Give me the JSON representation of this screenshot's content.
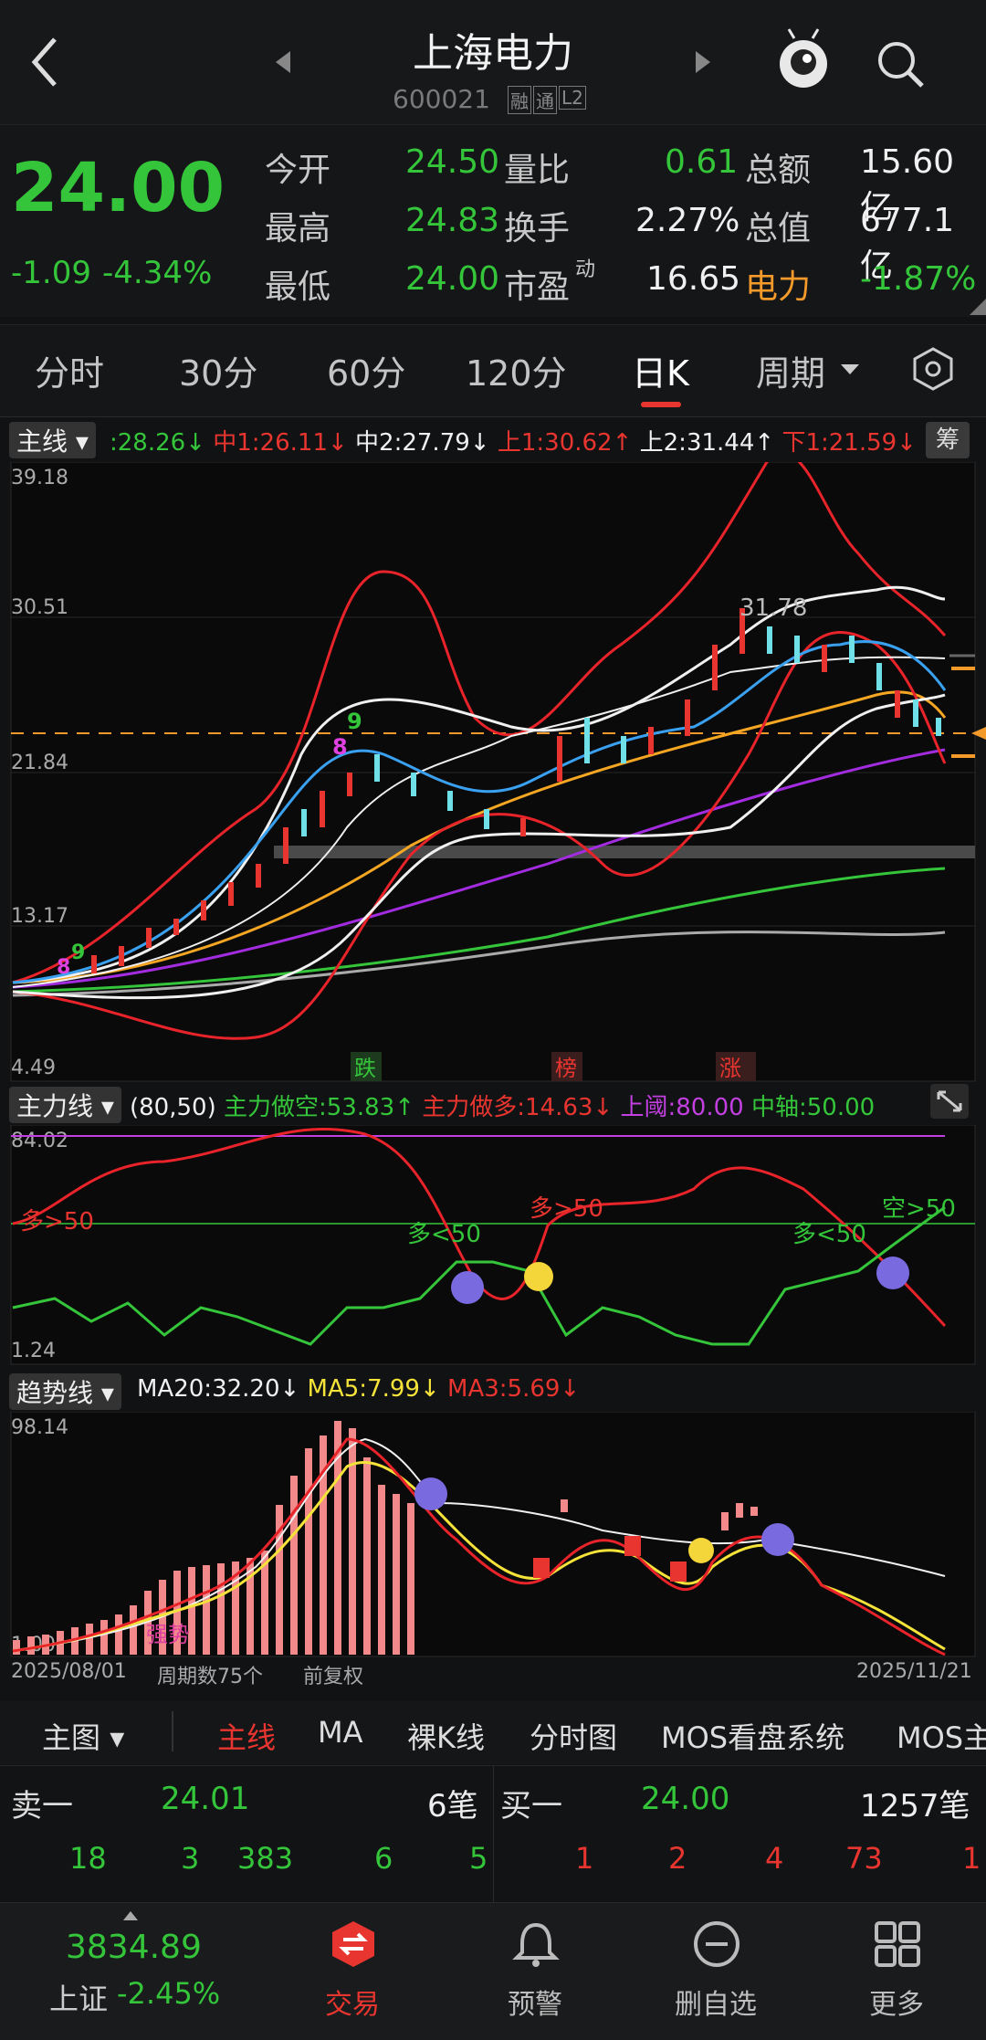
{
  "header": {
    "title": "上海电力",
    "code": "600021",
    "tags": [
      "融",
      "通",
      "L2"
    ]
  },
  "quote": {
    "price": "24.00",
    "change": "-1.09",
    "change_pct": "-4.34%",
    "rows": [
      [
        {
          "label": "今开",
          "value": "24.50",
          "color": "green"
        },
        {
          "label": "量比",
          "value": "0.61",
          "color": "green"
        },
        {
          "label": "总额",
          "value": "15.60亿",
          "color": "white"
        }
      ],
      [
        {
          "label": "最高",
          "value": "24.83",
          "color": "green"
        },
        {
          "label": "换手",
          "value": "2.27%",
          "color": "white"
        },
        {
          "label": "总值",
          "value": "677.1亿",
          "color": "white"
        }
      ],
      [
        {
          "label": "最低",
          "value": "24.00",
          "color": "green"
        },
        {
          "label": "市盈",
          "sup": "动",
          "value": "16.65",
          "color": "white"
        },
        {
          "label": "电力",
          "value": "-1.87%",
          "color": "green",
          "label_color": "orange"
        }
      ]
    ]
  },
  "tabs": [
    "分时",
    "30分",
    "60分",
    "120分",
    "日K",
    "周期"
  ],
  "main_chart": {
    "indicator": "主线",
    "legend": [
      {
        "text": ":28.26↓",
        "color": "#34c53a"
      },
      {
        "text": "中1:26.11↓",
        "color": "#e8352f"
      },
      {
        "text": "中2:27.79↓",
        "color": "#f0f0f0"
      },
      {
        "text": "上1:30.62↑",
        "color": "#e8352f"
      },
      {
        "text": "上2:31.44↑",
        "color": "#f0f0f0"
      },
      {
        "text": "下1:21.59↓",
        "color": "#e8352f"
      }
    ],
    "chip_label": "筹",
    "y_ticks": [
      "39.18",
      "30.51",
      "21.84",
      "13.17",
      "4.49"
    ],
    "peak_label": "31.78",
    "markers": [
      "跌",
      "榜",
      "涨"
    ]
  },
  "sub1": {
    "indicator": "主力线",
    "legend": [
      {
        "text": "(80,50)",
        "color": "#f0f0f0"
      },
      {
        "text": "主力做空:53.83↑",
        "color": "#34c53a"
      },
      {
        "text": "主力做多:14.63↓",
        "color": "#e8352f"
      },
      {
        "text": "上阈:80.00",
        "color": "#c23fe0"
      },
      {
        "text": "中轴:50.00",
        "color": "#34c53a"
      }
    ],
    "y_ticks": [
      "84.02",
      "1.24"
    ],
    "annotations": [
      {
        "text": "多>50",
        "color": "#e8352f"
      },
      {
        "text": "多<50",
        "color": "#34c53a"
      },
      {
        "text": "多>50",
        "color": "#e8352f"
      },
      {
        "text": "多<50",
        "color": "#34c53a"
      },
      {
        "text": "空>50",
        "color": "#34c53a"
      }
    ]
  },
  "sub2": {
    "indicator": "趋势线",
    "legend": [
      {
        "text": "MA20:32.20↓",
        "color": "#f0f0f0"
      },
      {
        "text": "MA5:7.99↓",
        "color": "#f5e33a"
      },
      {
        "text": "MA3:5.69↓",
        "color": "#e8352f"
      }
    ],
    "y_ticks": [
      "98.14",
      "1.00"
    ],
    "strong_label": "强势"
  },
  "axis_footer": {
    "start": "2025/08/01",
    "period": "周期数75个",
    "adjust": "前复权",
    "end": "2025/11/21"
  },
  "bottom_tabs": {
    "main": "主图",
    "items": [
      "主线",
      "MA",
      "裸K线",
      "分时图",
      "MOS看盘系统",
      "MOS主"
    ]
  },
  "order_book": {
    "sell": {
      "label": "卖一",
      "price": "24.01",
      "count": "6笔",
      "ticks": [
        "18",
        "3",
        "383",
        "6",
        "5"
      ]
    },
    "buy": {
      "label": "买一",
      "price": "24.00",
      "count": "1257笔",
      "ticks": [
        "1",
        "2",
        "4",
        "73",
        "1"
      ]
    }
  },
  "nav": {
    "index_value": "3834.89",
    "index_name": "上证",
    "index_change": "-2.45%",
    "items": [
      {
        "label": "交易",
        "icon": "trade-icon"
      },
      {
        "label": "预警",
        "icon": "bell-icon"
      },
      {
        "label": "删自选",
        "icon": "minus-circle-icon"
      },
      {
        "label": "更多",
        "icon": "grid-icon"
      }
    ]
  }
}
